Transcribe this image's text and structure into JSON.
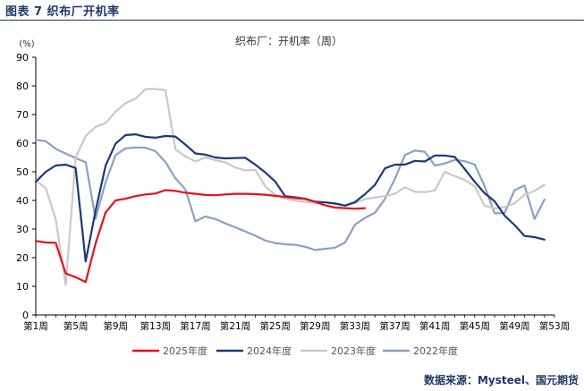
{
  "header": {
    "title": "图表 7  织布厂开机率"
  },
  "source": "数据来源：Mysteel、国元期货",
  "chart_data": {
    "type": "line",
    "title": "织布厂：开机率（周）",
    "unit_label": "(%)",
    "ylim": [
      0,
      90
    ],
    "yticks": [
      "0",
      "10",
      "20",
      "30",
      "40",
      "50",
      "60",
      "70",
      "80",
      "90"
    ],
    "xlim": [
      1,
      53
    ],
    "xticks": [
      {
        "x": 1,
        "label": "第1周"
      },
      {
        "x": 5,
        "label": "第5周"
      },
      {
        "x": 9,
        "label": "第9周"
      },
      {
        "x": 13,
        "label": "第13周"
      },
      {
        "x": 17,
        "label": "第17周"
      },
      {
        "x": 21,
        "label": "第21周"
      },
      {
        "x": 25,
        "label": "第25周"
      },
      {
        "x": 29,
        "label": "第29周"
      },
      {
        "x": 33,
        "label": "第33周"
      },
      {
        "x": 37,
        "label": "第37周"
      },
      {
        "x": 41,
        "label": "第41周"
      },
      {
        "x": 45,
        "label": "第45周"
      },
      {
        "x": 49,
        "label": "第49周"
      },
      {
        "x": 53,
        "label": "第53周"
      }
    ],
    "grid": false,
    "legend_position": "bottom",
    "series": [
      {
        "name": "2025年度",
        "color": "#e8101c",
        "points": [
          [
            1,
            25.8
          ],
          [
            2,
            25.3
          ],
          [
            3,
            25.2
          ],
          [
            4,
            14.5
          ],
          [
            5,
            13.2
          ],
          [
            6,
            11.5
          ],
          [
            7,
            25
          ],
          [
            8,
            35.8
          ],
          [
            9,
            40
          ],
          [
            10,
            40.6
          ],
          [
            11,
            41.5
          ],
          [
            12,
            42.1
          ],
          [
            13,
            42.4
          ],
          [
            14,
            43.6
          ],
          [
            15,
            43.3
          ],
          [
            16,
            42.7
          ],
          [
            17,
            42.3
          ],
          [
            18,
            41.9
          ],
          [
            19,
            41.8
          ],
          [
            20,
            42.1
          ],
          [
            21,
            42.3
          ],
          [
            22,
            42.3
          ],
          [
            23,
            42.2
          ],
          [
            24,
            42
          ],
          [
            25,
            41.6
          ],
          [
            26,
            41.2
          ],
          [
            27,
            40.8
          ],
          [
            28,
            40.5
          ],
          [
            29,
            39.5
          ],
          [
            30,
            38.3
          ],
          [
            31,
            37.5
          ],
          [
            32,
            37.3
          ],
          [
            33,
            37.1
          ],
          [
            34,
            37.3
          ]
        ]
      },
      {
        "name": "2024年度",
        "color": "#1a3a78",
        "points": [
          [
            1,
            46.5
          ],
          [
            2,
            50
          ],
          [
            3,
            52.2
          ],
          [
            4,
            52.5
          ],
          [
            5,
            51.3
          ],
          [
            6,
            18.7
          ],
          [
            7,
            36.4
          ],
          [
            8,
            52.2
          ],
          [
            9,
            59.8
          ],
          [
            10,
            62.8
          ],
          [
            11,
            63.1
          ],
          [
            12,
            62.2
          ],
          [
            13,
            61.9
          ],
          [
            14,
            62.5
          ],
          [
            15,
            62.3
          ],
          [
            16,
            59.5
          ],
          [
            17,
            56.4
          ],
          [
            18,
            56
          ],
          [
            19,
            55
          ],
          [
            20,
            54.7
          ],
          [
            21,
            54.8
          ],
          [
            22,
            54.9
          ],
          [
            23,
            52.5
          ],
          [
            24,
            49.8
          ],
          [
            25,
            46.6
          ],
          [
            26,
            41.5
          ],
          [
            27,
            41.1
          ],
          [
            28,
            40.6
          ],
          [
            29,
            39.6
          ],
          [
            30,
            39.3
          ],
          [
            31,
            38.9
          ],
          [
            32,
            38.2
          ],
          [
            33,
            39.4
          ],
          [
            34,
            42.2
          ],
          [
            35,
            45.4
          ],
          [
            36,
            51.2
          ],
          [
            37,
            52.5
          ],
          [
            38,
            52.5
          ],
          [
            39,
            53.8
          ],
          [
            40,
            53.6
          ],
          [
            41,
            55.7
          ],
          [
            42,
            55.7
          ],
          [
            43,
            55.2
          ],
          [
            44,
            51
          ],
          [
            45,
            46.5
          ],
          [
            46,
            42.5
          ],
          [
            47,
            39.7
          ],
          [
            48,
            34.7
          ],
          [
            49,
            31.4
          ],
          [
            50,
            27.6
          ],
          [
            51,
            27.2
          ],
          [
            52,
            26.3
          ]
        ]
      },
      {
        "name": "2023年度",
        "color": "#c9c9c9",
        "points": [
          [
            1,
            46.9
          ],
          [
            2,
            44.3
          ],
          [
            3,
            33.4
          ],
          [
            4,
            10.5
          ],
          [
            5,
            55
          ],
          [
            6,
            62.5
          ],
          [
            7,
            65.7
          ],
          [
            8,
            67
          ],
          [
            9,
            71
          ],
          [
            10,
            74
          ],
          [
            11,
            75.5
          ],
          [
            12,
            78.9
          ],
          [
            13,
            78.9
          ],
          [
            14,
            78.5
          ],
          [
            15,
            57.8
          ],
          [
            16,
            55.4
          ],
          [
            17,
            53.6
          ],
          [
            18,
            55
          ],
          [
            19,
            54.1
          ],
          [
            20,
            53.3
          ],
          [
            21,
            51.5
          ],
          [
            22,
            50.5
          ],
          [
            23,
            50.7
          ],
          [
            24,
            45
          ],
          [
            25,
            41.9
          ],
          [
            26,
            40.6
          ],
          [
            27,
            40
          ],
          [
            28,
            39.5
          ],
          [
            29,
            39.1
          ],
          [
            30,
            39.4
          ],
          [
            31,
            39
          ],
          [
            32,
            38.2
          ],
          [
            33,
            39
          ],
          [
            34,
            40.5
          ],
          [
            35,
            41
          ],
          [
            36,
            41.5
          ],
          [
            37,
            42.3
          ],
          [
            38,
            44.6
          ],
          [
            39,
            43
          ],
          [
            40,
            42.9
          ],
          [
            41,
            43.5
          ],
          [
            42,
            50
          ],
          [
            43,
            48.5
          ],
          [
            44,
            47.2
          ],
          [
            45,
            44.9
          ],
          [
            46,
            38.1
          ],
          [
            47,
            37.2
          ],
          [
            48,
            37.7
          ],
          [
            49,
            39
          ],
          [
            50,
            42
          ],
          [
            51,
            43.3
          ],
          [
            52,
            45.5
          ]
        ]
      },
      {
        "name": "2022年度",
        "color": "#8ba0c4",
        "points": [
          [
            1,
            61.2
          ],
          [
            2,
            60.7
          ],
          [
            3,
            58
          ],
          [
            4,
            56.3
          ],
          [
            5,
            54.8
          ],
          [
            6,
            53.3
          ],
          [
            7,
            33.6
          ],
          [
            8,
            46.4
          ],
          [
            9,
            55.8
          ],
          [
            10,
            58.2
          ],
          [
            11,
            58.5
          ],
          [
            12,
            58.4
          ],
          [
            13,
            57.2
          ],
          [
            14,
            53.4
          ],
          [
            15,
            47.7
          ],
          [
            16,
            43.8
          ],
          [
            17,
            32.7
          ],
          [
            18,
            34.4
          ],
          [
            19,
            33.5
          ],
          [
            20,
            32
          ],
          [
            21,
            30.6
          ],
          [
            22,
            29.2
          ],
          [
            23,
            27.7
          ],
          [
            24,
            26
          ],
          [
            25,
            25.1
          ],
          [
            26,
            24.7
          ],
          [
            27,
            24.5
          ],
          [
            28,
            23.8
          ],
          [
            29,
            22.7
          ],
          [
            30,
            23.1
          ],
          [
            31,
            23.5
          ],
          [
            32,
            25.3
          ],
          [
            33,
            31.5
          ],
          [
            34,
            33.9
          ],
          [
            35,
            35.7
          ],
          [
            36,
            40.5
          ],
          [
            37,
            47.5
          ],
          [
            38,
            55.8
          ],
          [
            39,
            57.4
          ],
          [
            40,
            57
          ],
          [
            41,
            52.2
          ],
          [
            42,
            52.9
          ],
          [
            43,
            54.2
          ],
          [
            44,
            53.7
          ],
          [
            45,
            52.5
          ],
          [
            46,
            45
          ],
          [
            47,
            35.5
          ],
          [
            48,
            35.6
          ],
          [
            49,
            43.6
          ],
          [
            50,
            45.2
          ],
          [
            51,
            33.5
          ],
          [
            52,
            40.3
          ]
        ]
      }
    ]
  }
}
